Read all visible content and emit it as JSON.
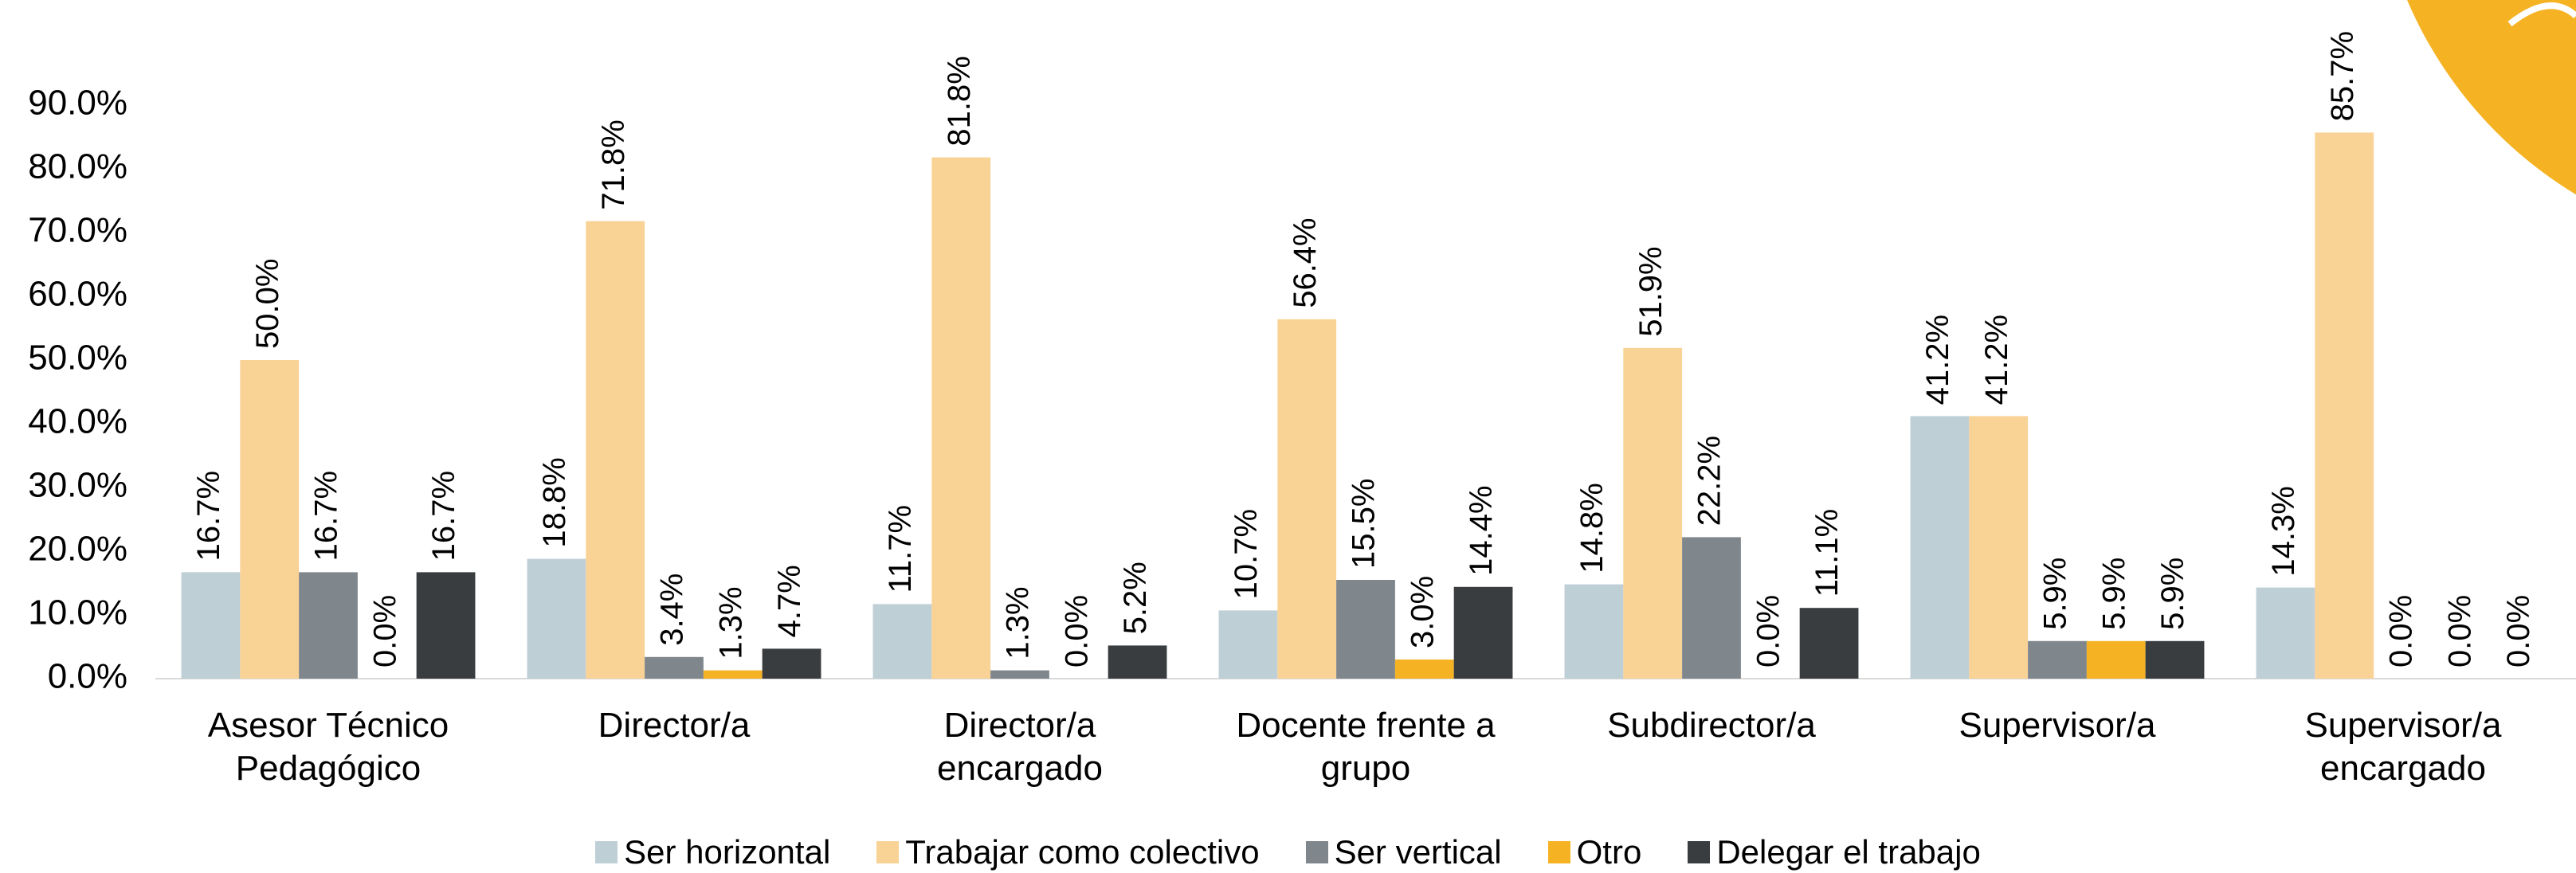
{
  "chart_data": {
    "type": "bar",
    "categories": [
      "Asesor Técnico Pedagógico",
      "Director/a",
      "Director/a encargado",
      "Docente frente a grupo",
      "Subdirector/a",
      "Supervisor/a",
      "Supervisor/a encargado"
    ],
    "series": [
      {
        "name": "Ser horizontal",
        "color": "#bfcfd6",
        "values": [
          16.7,
          18.8,
          11.7,
          10.7,
          14.8,
          41.2,
          14.3
        ],
        "value_labels": [
          "16.7%",
          "18.8%",
          "11.7%",
          "10.7%",
          "14.8%",
          "41.2%",
          "14.3%"
        ]
      },
      {
        "name": "Trabajar como colectivo",
        "color": "#f9d296",
        "values": [
          50.0,
          71.8,
          81.8,
          56.4,
          51.9,
          41.2,
          85.7
        ],
        "value_labels": [
          "50.0%",
          "71.8%",
          "81.8%",
          "56.4%",
          "51.9%",
          "41.2%",
          "85.7%"
        ]
      },
      {
        "name": "Ser vertical",
        "color": "#7f878d",
        "values": [
          16.7,
          3.4,
          1.3,
          15.5,
          22.2,
          5.9,
          0.0
        ],
        "value_labels": [
          "16.7%",
          "3.4%",
          "1.3%",
          "15.5%",
          "22.2%",
          "5.9%",
          "0.0%"
        ]
      },
      {
        "name": "Otro",
        "color": "#f5b323",
        "values": [
          0.0,
          1.3,
          0.0,
          3.0,
          0.0,
          5.9,
          0.0
        ],
        "value_labels": [
          "0.0%",
          "1.3%",
          "0.0%",
          "3.0%",
          "0.0%",
          "5.9%",
          "0.0%"
        ]
      },
      {
        "name": "Delegar el trabajo",
        "color": "#3a3d40",
        "values": [
          16.7,
          4.7,
          5.2,
          14.4,
          11.1,
          5.9,
          0.0
        ],
        "value_labels": [
          "16.7%",
          "4.7%",
          "5.2%",
          "14.4%",
          "11.1%",
          "5.9%",
          "0.0%"
        ]
      }
    ],
    "ylim": [
      0,
      90
    ],
    "yticks": [
      {
        "value": 0,
        "label": "0.0%"
      },
      {
        "value": 10,
        "label": "10.0%"
      },
      {
        "value": 20,
        "label": "20.0%"
      },
      {
        "value": 30,
        "label": "30.0%"
      },
      {
        "value": 40,
        "label": "40.0%"
      },
      {
        "value": 50,
        "label": "50.0%"
      },
      {
        "value": 60,
        "label": "60.0%"
      },
      {
        "value": 70,
        "label": "70.0%"
      },
      {
        "value": 80,
        "label": "80.0%"
      },
      {
        "value": 90,
        "label": "90.0%"
      }
    ],
    "grid": false,
    "legend": "bottom"
  }
}
